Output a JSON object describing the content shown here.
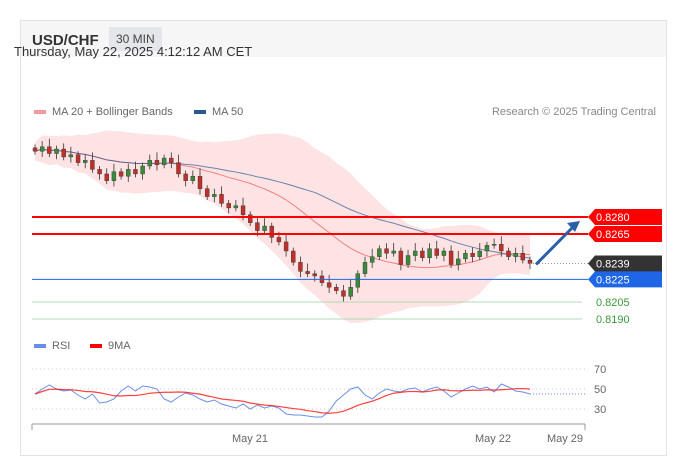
{
  "header": {
    "symbol": "USD/CHF",
    "timeframe": "30 MIN"
  },
  "datetime": "Thursday, May 22, 2025 4:12:12 AM CET",
  "legend": {
    "ma20": "MA 20 + Bollinger Bands",
    "ma50": "MA 50",
    "rsi": "RSI",
    "ma9": "9MA"
  },
  "credit": "Research © 2025 Trading Central",
  "colors": {
    "ma20": "#f08080",
    "ma50": "#2b5797",
    "resistance": "#ff0000",
    "support": "#1e66e6",
    "current": "#333333",
    "green": "#3a9a3a",
    "rsi": "#6a8fe8",
    "ma9": "#ff0000",
    "arrow": "#2b5fa8"
  },
  "chart_data": [
    {
      "type": "candlestick",
      "title": "USD/CHF 30 MIN",
      "closes": [
        0.8338,
        0.8342,
        0.8336,
        0.834,
        0.8333,
        0.8335,
        0.8328,
        0.833,
        0.8322,
        0.8318,
        0.8312,
        0.832,
        0.8316,
        0.8322,
        0.8318,
        0.8325,
        0.833,
        0.8326,
        0.8332,
        0.8328,
        0.8318,
        0.8312,
        0.8316,
        0.8305,
        0.8298,
        0.83,
        0.8292,
        0.8288,
        0.829,
        0.8282,
        0.8275,
        0.8268,
        0.8272,
        0.8262,
        0.8258,
        0.825,
        0.824,
        0.8232,
        0.823,
        0.8228,
        0.8222,
        0.8218,
        0.8215,
        0.821,
        0.8218,
        0.823,
        0.824,
        0.8245,
        0.8252,
        0.8248,
        0.825,
        0.8238,
        0.8246,
        0.825,
        0.8244,
        0.8252,
        0.8246,
        0.825,
        0.8238,
        0.8243,
        0.8248,
        0.8245,
        0.825,
        0.8255,
        0.8256,
        0.825,
        0.8245,
        0.8248,
        0.8242,
        0.8239
      ],
      "levels": [
        {
          "value": "0.8280",
          "kind": "resistance"
        },
        {
          "value": "0.8265",
          "kind": "resistance"
        },
        {
          "value": "0.8239",
          "kind": "current"
        },
        {
          "value": "0.8225",
          "kind": "support"
        },
        {
          "value": "0.8205",
          "kind": "green"
        },
        {
          "value": "0.8190",
          "kind": "green"
        }
      ],
      "target": 0.828,
      "x_labels": [
        "May 21",
        "May 22",
        "May 29"
      ]
    },
    {
      "type": "line",
      "title": "RSI",
      "rsi": [
        45,
        50,
        54,
        50,
        48,
        49,
        44,
        40,
        45,
        36,
        37,
        40,
        48,
        53,
        48,
        53,
        52,
        50,
        40,
        37,
        42,
        46,
        44,
        40,
        37,
        39,
        35,
        33,
        31,
        35,
        30,
        34,
        31,
        33,
        31,
        25,
        24,
        24,
        23,
        22,
        22,
        28,
        38,
        44,
        50,
        52,
        44,
        40,
        46,
        50,
        48,
        47,
        50,
        51,
        47,
        50,
        52,
        48,
        42,
        46,
        50,
        53,
        50,
        52,
        47,
        55,
        52,
        48,
        47,
        45
      ],
      "y_ticks": [
        70,
        50,
        30
      ],
      "ylim": [
        20,
        75
      ]
    }
  ]
}
